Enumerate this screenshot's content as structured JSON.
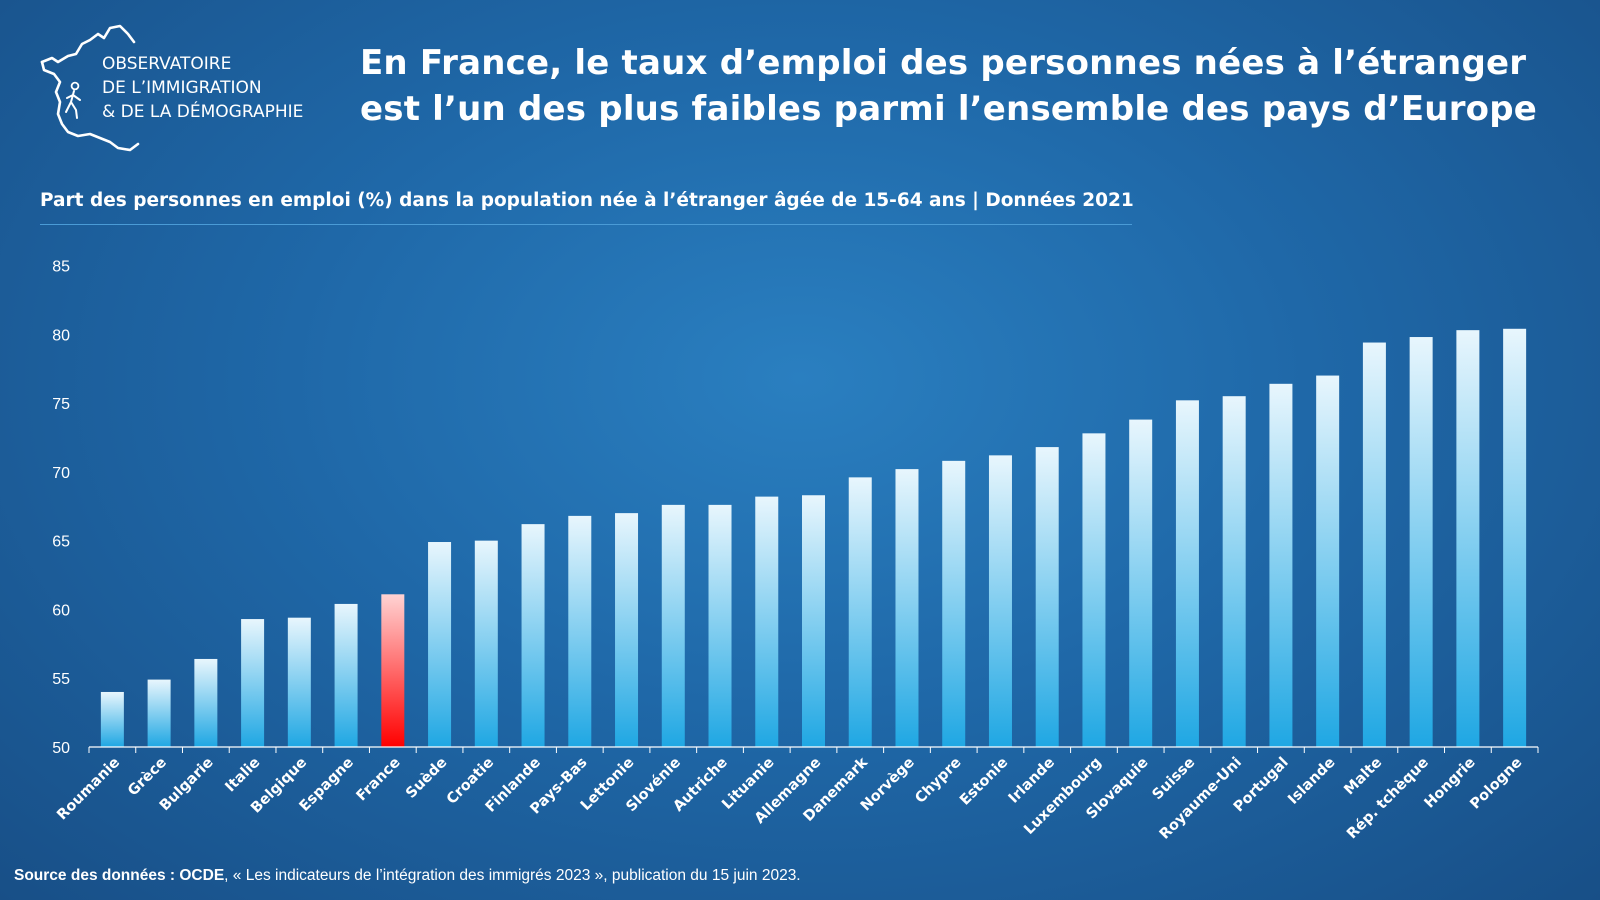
{
  "logo": {
    "line1": "OBSERVATOIRE",
    "line2": "DE L’IMMIGRATION",
    "line3": "& DE LA DÉMOGRAPHIE"
  },
  "title": {
    "line1": "En France, le taux d’emploi des personnes nées à l’étranger",
    "line2": "est l’un des plus faibles parmi l’ensemble des pays d’Europe"
  },
  "footer": {
    "source_label": "Source des données : OCDE",
    "source_text": ", « Les indicateurs de l’intégration des immigrés 2023 », publication du 15 juin 2023."
  },
  "colors": {
    "bar_top": "#e8f6fd",
    "bar_bottom": "#1fa7e3",
    "highlight_top": "#ffd3d3",
    "highlight_bottom": "#ff0000"
  },
  "chart_data": {
    "type": "bar",
    "title": "Part des personnes en emploi (%) dans la population née à l’étranger âgée de 15-64 ans | Données 2021",
    "xlabel": "",
    "ylabel": "",
    "ylim": [
      50,
      85
    ],
    "yticks": [
      50,
      55,
      60,
      65,
      70,
      75,
      80,
      85
    ],
    "grid": false,
    "highlight": "France",
    "categories": [
      "Roumanie",
      "Grèce",
      "Bulgarie",
      "Italie",
      "Belgique",
      "Espagne",
      "France",
      "Suède",
      "Croatie",
      "Finlande",
      "Pays-Bas",
      "Lettonie",
      "Slovénie",
      "Autriche",
      "Lituanie",
      "Allemagne",
      "Danemark",
      "Norvège",
      "Chypre",
      "Estonie",
      "Irlande",
      "Luxembourg",
      "Slovaquie",
      "Suisse",
      "Royaume-Uni",
      "Portugal",
      "Islande",
      "Malte",
      "Rép. tchèque",
      "Hongrie",
      "Pologne"
    ],
    "values": [
      54.0,
      54.9,
      56.4,
      59.3,
      59.4,
      60.4,
      61.1,
      64.9,
      65.0,
      66.2,
      66.8,
      67.0,
      67.6,
      67.6,
      68.2,
      68.3,
      69.6,
      70.2,
      70.8,
      71.2,
      71.8,
      72.8,
      73.8,
      75.2,
      75.5,
      76.4,
      77.0,
      79.4,
      79.8,
      80.3,
      80.4
    ]
  }
}
